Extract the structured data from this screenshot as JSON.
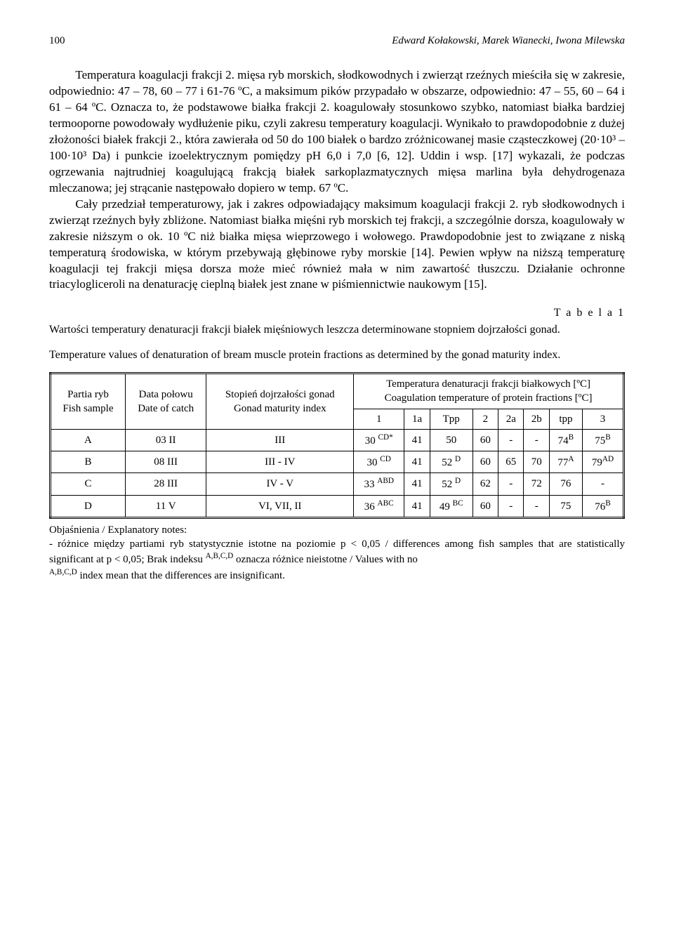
{
  "header": {
    "page_num": "100",
    "authors": "Edward Kołakowski, Marek Wianecki, Iwona Milewska"
  },
  "paragraphs": {
    "p1": "Temperatura koagulacji frakcji 2. mięsa ryb morskich, słodkowodnych i zwierząt rzeźnych mieściła się w zakresie, odpowiednio: 47 – 78, 60 – 77 i 61-76 ºC, a maksimum pików przypadało w obszarze, odpowiednio: 47 – 55, 60 – 64 i 61 – 64 ºC. Oznacza to, że podstawowe białka frakcji 2. koagulowały stosunkowo szybko, natomiast białka bardziej termooporne powodowały wydłużenie piku, czyli zakresu temperatury koagulacji. Wynikało to prawdopodobnie z dużej złożoności białek frakcji 2., która zawierała od 50 do 100 białek o bardzo zróżnicowanej masie cząsteczkowej (20·10³ – 100·10³ Da) i punkcie izoelektrycznym pomiędzy pH 6,0 i 7,0 [6, 12]. Uddin i wsp. [17] wykazali, że podczas ogrzewania najtrudniej koagulującą frakcją białek sarkoplazmatycznych mięsa marlina była dehydrogenaza mleczanowa; jej strącanie następowało dopiero w temp. 67 ºC.",
    "p2": "Cały przedział temperaturowy, jak i zakres odpowiadający maksimum koagulacji frakcji 2. ryb słodkowodnych i zwierząt rzeźnych były zbliżone. Natomiast białka mięśni ryb morskich tej frakcji, a szczególnie dorsza, koagulowały w zakresie niższym o ok. 10 ºC niż białka mięsa wieprzowego i wołowego. Prawdopodobnie jest to związane z niską temperaturą środowiska, w którym przebywają głębinowe ryby morskie [14]. Pewien wpływ na niższą temperaturę koagulacji tej frakcji mięsa dorsza może mieć również mała w nim zawartość tłuszczu. Działanie ochronne triacylogliceroli na denaturację cieplną białek jest znane w piśmiennictwie naukowym [15]."
  },
  "table1": {
    "caption_label": "T a b e l a  1",
    "desc_pl": "Wartości temperatury denaturacji frakcji białek mięśniowych leszcza determinowane stopniem dojrzałości gonad.",
    "desc_en": "Temperature values of denaturation of bream muscle protein fractions as determined by the gonad maturity index.",
    "head": {
      "col1_pl": "Partia ryb",
      "col1_en": "Fish sample",
      "col2_pl": "Data połowu",
      "col2_en": "Date of catch",
      "col3_pl": "Stopień dojrzałości gonad",
      "col3_en": "Gonad maturity index",
      "group_pl": "Temperatura denaturacji frakcji białkowych [ºC]",
      "group_en": "Coagulation temperature of protein fractions [ºC]",
      "sub": [
        "1",
        "1a",
        "Tpp",
        "2",
        "2a",
        "2b",
        "tpp",
        "3"
      ]
    },
    "rows": [
      {
        "id": "A",
        "date": "03 II",
        "gonad": "III",
        "v": [
          "30 ",
          "41",
          "50",
          "60",
          "-",
          "-",
          "74",
          "75"
        ],
        "sup": [
          "CD*",
          "",
          "",
          "",
          "",
          "",
          "B",
          "B"
        ]
      },
      {
        "id": "B",
        "date": "08 III",
        "gonad": "III - IV",
        "v": [
          "30 ",
          "41",
          "52 ",
          "60",
          "65",
          "70",
          "77",
          "79"
        ],
        "sup": [
          "CD",
          "",
          "D",
          "",
          "",
          "",
          "A",
          "AD"
        ]
      },
      {
        "id": "C",
        "date": "28 III",
        "gonad": "IV - V",
        "v": [
          "33 ",
          "41",
          "52 ",
          "62",
          "-",
          "72",
          "76",
          "-"
        ],
        "sup": [
          "ABD",
          "",
          "D",
          "",
          "",
          "",
          "",
          ""
        ]
      },
      {
        "id": "D",
        "date": "11 V",
        "gonad": "VI, VII, II",
        "v": [
          "36 ",
          "41",
          "49 ",
          "60",
          "-",
          "-",
          "75",
          "76"
        ],
        "sup": [
          "ABC",
          "",
          "BC",
          "",
          "",
          "",
          "",
          "B"
        ]
      }
    ],
    "notes_label": "Objaśnienia / Explanatory notes:",
    "notes_body": "- różnice między partiami ryb statystycznie istotne na poziomie p < 0,05 / differences among fish samples that are statistically significant at p < 0,05; Brak indeksu ",
    "notes_sup": "A,B,C,D",
    "notes_body2": " oznacza różnice nieistotne / Values with no ",
    "notes_body3": " index mean that the differences are insignificant."
  }
}
